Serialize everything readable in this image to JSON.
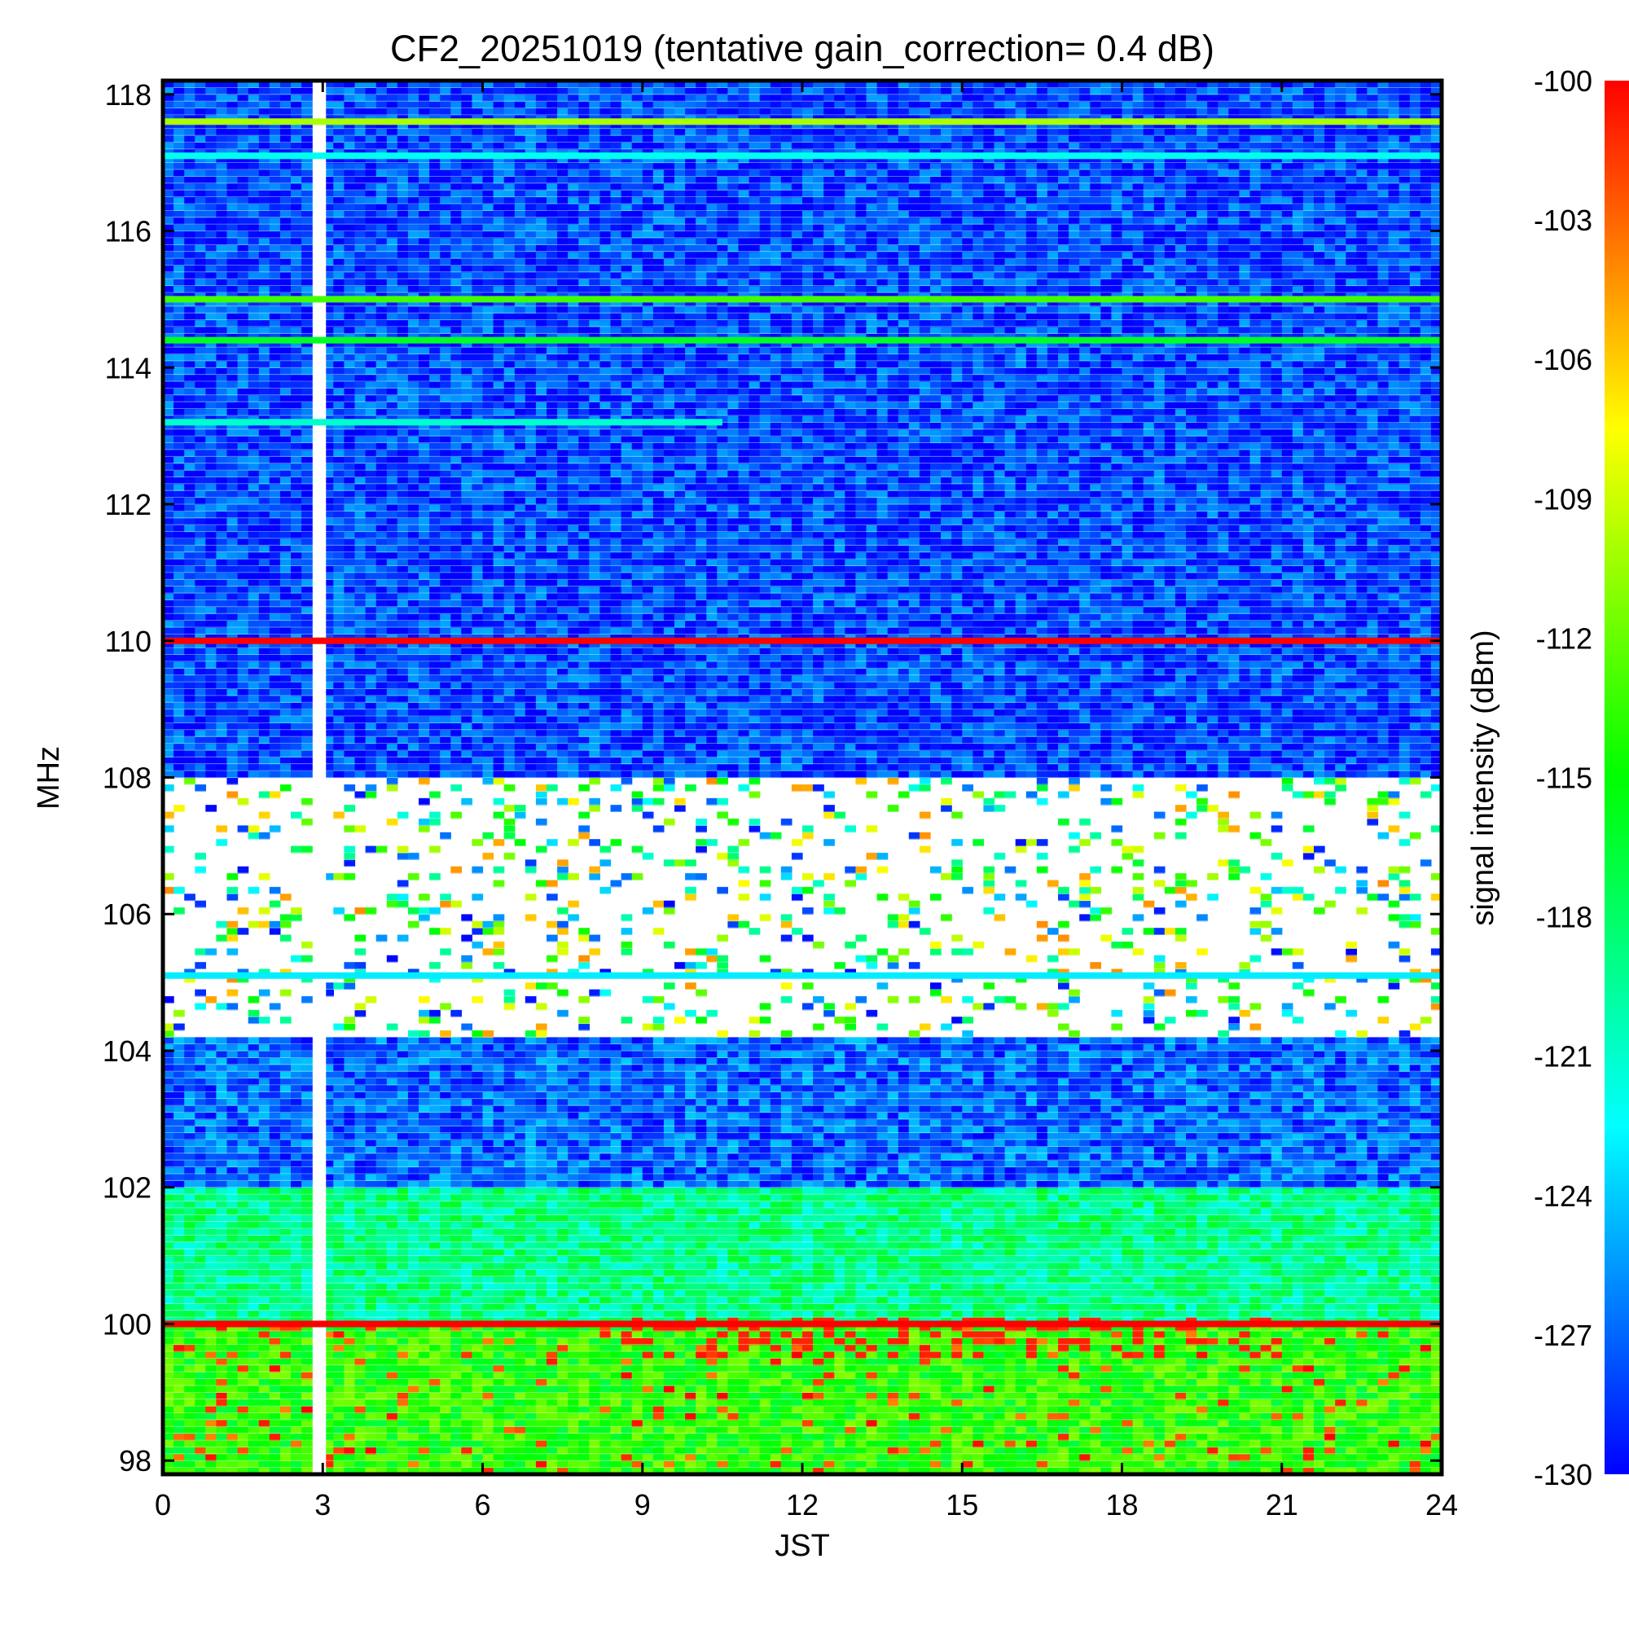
{
  "chart_data": {
    "type": "heatmap",
    "title": "CF2_20251019 (tentative gain_correction=  0.4 dB)",
    "xlabel": "JST",
    "ylabel": "MHz",
    "colorbar_label": "signal intensity (dBm)",
    "xlim": [
      0,
      24
    ],
    "ylim": [
      97.8,
      118.2
    ],
    "x_ticks": [
      0,
      3,
      6,
      9,
      12,
      15,
      18,
      21,
      24
    ],
    "y_ticks": [
      98,
      100,
      102,
      104,
      106,
      108,
      110,
      112,
      114,
      116,
      118
    ],
    "colorbar_range": [
      -130,
      -100
    ],
    "colorbar_ticks": [
      -100,
      -103,
      -106,
      -109,
      -112,
      -115,
      -118,
      -121,
      -124,
      -127,
      -130
    ],
    "colormap": [
      "#0000ff",
      "#00ffff",
      "#00ff00",
      "#ffff00",
      "#ff0000"
    ],
    "data_gap_hour": 3.0,
    "strong_lines": [
      {
        "freq_mhz": 117.6,
        "dbm": -110,
        "note": "yellow-green line"
      },
      {
        "freq_mhz": 117.1,
        "dbm": -122
      },
      {
        "freq_mhz": 115.0,
        "dbm": -113
      },
      {
        "freq_mhz": 114.4,
        "dbm": -116
      },
      {
        "freq_mhz": 113.2,
        "dbm": -121,
        "hours": [
          0,
          10.5
        ]
      },
      {
        "freq_mhz": 110.0,
        "dbm": -100,
        "note": "strong red line"
      },
      {
        "freq_mhz": 105.1,
        "dbm": -123
      },
      {
        "freq_mhz": 100.0,
        "dbm": -100,
        "note": "strong red line"
      }
    ],
    "bands": [
      {
        "from_mhz": 108.0,
        "to_mhz": 118.2,
        "mean_dbm": -128,
        "description": "mostly blue noise floor"
      },
      {
        "from_mhz": 104.2,
        "to_mhz": 108.0,
        "mean_dbm": null,
        "description": "masked / saturated, mostly blank with sparse values"
      },
      {
        "from_mhz": 102.0,
        "to_mhz": 104.2,
        "mean_dbm": -127,
        "description": "blue to cyan"
      },
      {
        "from_mhz": 100.0,
        "to_mhz": 102.0,
        "mean_dbm": -119,
        "description": "green"
      },
      {
        "from_mhz": 97.8,
        "to_mhz": 100.0,
        "mean_dbm": -114,
        "description": "green to yellow with red bursts"
      }
    ]
  }
}
